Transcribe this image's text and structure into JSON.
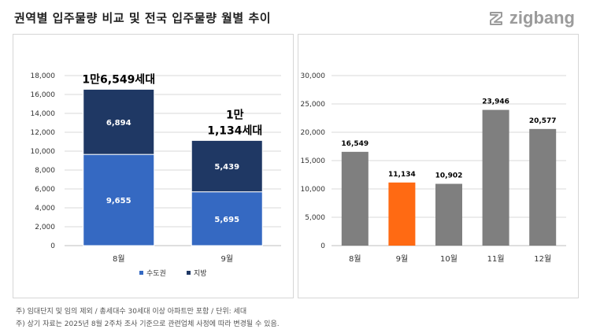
{
  "header": {
    "title": "권역별 입주물량 비교 및 전국 입주물량 월별 추이",
    "brand": "zigbang",
    "brand_icon": "zigbang-logo-icon"
  },
  "colors": {
    "capital": "#3569c2",
    "local": "#1f3864",
    "grey_bar": "#7f7f7f",
    "highlight": "#ff6a13",
    "grid": "#d9d9d9"
  },
  "chart_data": [
    {
      "type": "bar",
      "stacked": true,
      "categories": [
        "8월",
        "9월"
      ],
      "series": [
        {
          "name": "수도권",
          "values": [
            9655,
            5695
          ],
          "labels": [
            "9,655",
            "5,695"
          ]
        },
        {
          "name": "지방",
          "values": [
            6894,
            5439
          ],
          "labels": [
            "6,894",
            "5,439"
          ]
        }
      ],
      "totals": [
        "1만6,549세대",
        "1만\n1,134세대"
      ],
      "ylim": [
        0,
        18000
      ],
      "yticks": [
        "0",
        "2,000",
        "4,000",
        "6,000",
        "8,000",
        "10,000",
        "12,000",
        "14,000",
        "16,000",
        "18,000"
      ],
      "legend": "bottom",
      "grid": true
    },
    {
      "type": "bar",
      "categories": [
        "8월",
        "9월",
        "10월",
        "11월",
        "12월"
      ],
      "values": [
        16549,
        11134,
        10902,
        23946,
        20577
      ],
      "labels": [
        "16,549",
        "11,134",
        "10,902",
        "23,946",
        "20,577"
      ],
      "highlight_index": 1,
      "ylim": [
        0,
        30000
      ],
      "yticks": [
        "0",
        "5,000",
        "10,000",
        "15,000",
        "20,000",
        "25,000",
        "30,000"
      ],
      "grid": true
    }
  ],
  "footnotes": [
    "주) 임대단지 및 임의 제외 / 총세대수 30세대 이상 아파트만 포함 / 단위: 세대",
    "주) 상기 자료는 2025년 8월 2주차 조사 기준으로 관련업체 사정에 따라 변경될 수 있음."
  ]
}
